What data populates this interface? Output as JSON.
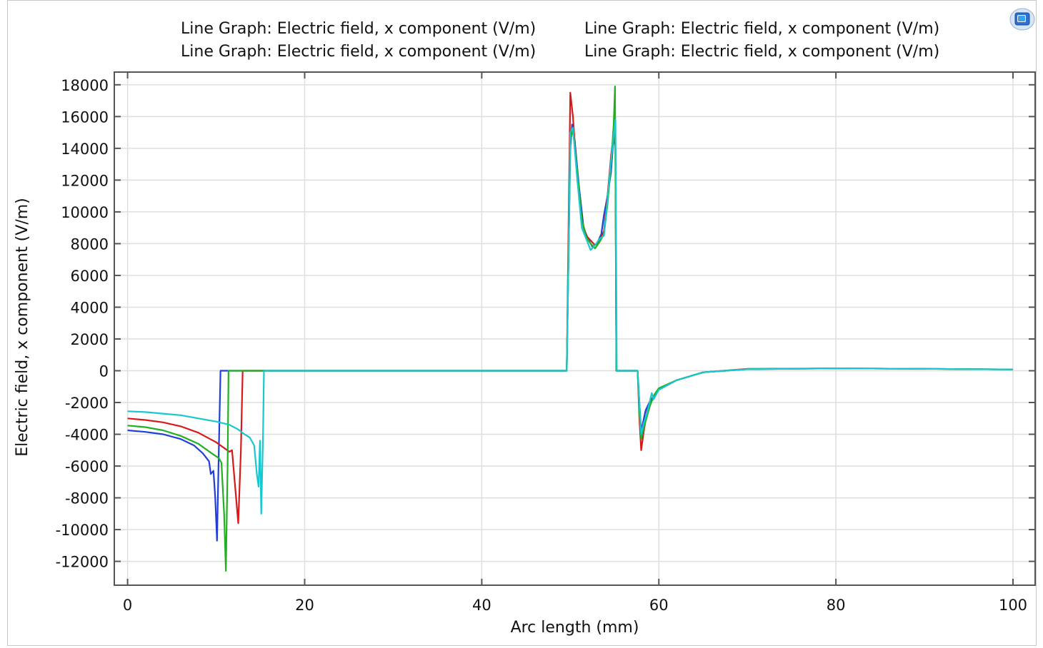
{
  "icon": "comsol-graphics-icon",
  "chart_data": {
    "type": "line",
    "title": "",
    "xlabel": "Arc length (mm)",
    "ylabel": "Electric field, x component (V/m)",
    "xlim": [
      -1.5,
      102.5
    ],
    "ylim": [
      -13500,
      18800
    ],
    "xticks": [
      0,
      20,
      40,
      60,
      80,
      100
    ],
    "yticks": [
      18000,
      16000,
      14000,
      12000,
      10000,
      8000,
      6000,
      4000,
      2000,
      0,
      -2000,
      -4000,
      -6000,
      -8000,
      -10000,
      -12000
    ],
    "grid": true,
    "legend_position": "top",
    "legend": [
      "Line Graph: Electric field, x component (V/m)",
      "Line Graph: Electric field, x component (V/m)",
      "Line Graph: Electric field, x component (V/m)",
      "Line Graph: Electric field, x component (V/m)"
    ],
    "series": [
      {
        "color": "#1f3fd6",
        "points": [
          [
            0,
            -3750
          ],
          [
            2,
            -3850
          ],
          [
            4,
            -4000
          ],
          [
            6,
            -4300
          ],
          [
            7.5,
            -4700
          ],
          [
            8.5,
            -5200
          ],
          [
            9.2,
            -5700
          ],
          [
            9.4,
            -6500
          ],
          [
            9.7,
            -6300
          ],
          [
            9.9,
            -8000
          ],
          [
            10.1,
            -10700
          ],
          [
            10.3,
            -5000
          ],
          [
            10.5,
            0
          ],
          [
            12,
            0
          ],
          [
            20,
            0
          ],
          [
            40,
            0
          ],
          [
            49.6,
            0
          ],
          [
            49.8,
            7000
          ],
          [
            50.0,
            14000
          ],
          [
            50.2,
            15500
          ],
          [
            50.5,
            14500
          ],
          [
            51,
            11500
          ],
          [
            51.5,
            9000
          ],
          [
            52,
            8300
          ],
          [
            52.5,
            7800
          ],
          [
            53,
            8000
          ],
          [
            53.5,
            8600
          ],
          [
            53.8,
            9800
          ],
          [
            54.2,
            11000
          ],
          [
            54.6,
            12500
          ],
          [
            54.9,
            14800
          ],
          [
            55.1,
            14000
          ],
          [
            55.2,
            0
          ],
          [
            57.6,
            0
          ],
          [
            57.8,
            -2000
          ],
          [
            58.0,
            -3800
          ],
          [
            58.2,
            -3300
          ],
          [
            58.5,
            -2500
          ],
          [
            59,
            -1900
          ],
          [
            60,
            -1200
          ],
          [
            62,
            -600
          ],
          [
            65,
            -100
          ],
          [
            70,
            100
          ],
          [
            80,
            150
          ],
          [
            90,
            120
          ],
          [
            100,
            80
          ]
        ]
      },
      {
        "color": "#d71919",
        "points": [
          [
            0,
            -3000
          ],
          [
            2,
            -3100
          ],
          [
            4,
            -3250
          ],
          [
            6,
            -3500
          ],
          [
            8,
            -3900
          ],
          [
            10,
            -4500
          ],
          [
            11.5,
            -5100
          ],
          [
            11.8,
            -5000
          ],
          [
            12.5,
            -9600
          ],
          [
            12.8,
            -5000
          ],
          [
            13.0,
            0
          ],
          [
            15,
            0
          ],
          [
            20,
            0
          ],
          [
            40,
            0
          ],
          [
            49.6,
            0
          ],
          [
            49.8,
            9000
          ],
          [
            50.0,
            17500
          ],
          [
            50.3,
            16000
          ],
          [
            50.8,
            12000
          ],
          [
            51.3,
            9500
          ],
          [
            51.8,
            8500
          ],
          [
            52.3,
            8200
          ],
          [
            52.8,
            7900
          ],
          [
            53.3,
            8200
          ],
          [
            53.8,
            8800
          ],
          [
            54.2,
            11000
          ],
          [
            54.6,
            13500
          ],
          [
            54.9,
            15000
          ],
          [
            55.1,
            14000
          ],
          [
            55.2,
            0
          ],
          [
            57.6,
            0
          ],
          [
            57.8,
            -3000
          ],
          [
            58.0,
            -5000
          ],
          [
            58.3,
            -3800
          ],
          [
            58.7,
            -2500
          ],
          [
            59.2,
            -1900
          ],
          [
            60,
            -1200
          ],
          [
            62,
            -600
          ],
          [
            65,
            -100
          ],
          [
            70,
            120
          ],
          [
            80,
            150
          ],
          [
            90,
            120
          ],
          [
            100,
            80
          ]
        ]
      },
      {
        "color": "#22b022",
        "points": [
          [
            0,
            -3450
          ],
          [
            2,
            -3550
          ],
          [
            4,
            -3750
          ],
          [
            6,
            -4100
          ],
          [
            8,
            -4600
          ],
          [
            9.5,
            -5200
          ],
          [
            10.3,
            -5500
          ],
          [
            10.6,
            -5800
          ],
          [
            10.9,
            -9000
          ],
          [
            11.1,
            -12600
          ],
          [
            11.3,
            -6000
          ],
          [
            11.4,
            0
          ],
          [
            13,
            0
          ],
          [
            20,
            0
          ],
          [
            40,
            0
          ],
          [
            49.6,
            0
          ],
          [
            49.8,
            7500
          ],
          [
            50.0,
            14500
          ],
          [
            50.3,
            15200
          ],
          [
            50.8,
            12500
          ],
          [
            51.3,
            9500
          ],
          [
            51.8,
            8400
          ],
          [
            52.3,
            8000
          ],
          [
            52.8,
            7700
          ],
          [
            53.3,
            8100
          ],
          [
            53.8,
            8600
          ],
          [
            54.2,
            10500
          ],
          [
            54.6,
            13000
          ],
          [
            54.9,
            15500
          ],
          [
            55.05,
            17900
          ],
          [
            55.2,
            0
          ],
          [
            57.6,
            0
          ],
          [
            57.8,
            -2500
          ],
          [
            58.0,
            -4300
          ],
          [
            58.3,
            -3600
          ],
          [
            58.7,
            -2800
          ],
          [
            59.0,
            -2200
          ],
          [
            59.5,
            -1500
          ],
          [
            60,
            -1100
          ],
          [
            62,
            -600
          ],
          [
            65,
            -100
          ],
          [
            70,
            100
          ],
          [
            80,
            150
          ],
          [
            90,
            120
          ],
          [
            100,
            80
          ]
        ]
      },
      {
        "color": "#18c8d0",
        "points": [
          [
            0,
            -2550
          ],
          [
            2,
            -2600
          ],
          [
            4,
            -2700
          ],
          [
            6,
            -2800
          ],
          [
            8,
            -3000
          ],
          [
            10,
            -3200
          ],
          [
            11.5,
            -3400
          ],
          [
            12.5,
            -3700
          ],
          [
            13.2,
            -4000
          ],
          [
            13.8,
            -4200
          ],
          [
            14.3,
            -4700
          ],
          [
            14.6,
            -6500
          ],
          [
            14.8,
            -7300
          ],
          [
            14.95,
            -4400
          ],
          [
            15.1,
            -9000
          ],
          [
            15.3,
            -4000
          ],
          [
            15.4,
            0
          ],
          [
            17,
            0
          ],
          [
            20,
            0
          ],
          [
            40,
            0
          ],
          [
            49.6,
            0
          ],
          [
            49.8,
            7000
          ],
          [
            50.0,
            15000
          ],
          [
            50.3,
            15300
          ],
          [
            50.8,
            12000
          ],
          [
            51.3,
            9000
          ],
          [
            51.8,
            8300
          ],
          [
            52.3,
            7600
          ],
          [
            52.8,
            7900
          ],
          [
            53.3,
            8300
          ],
          [
            53.8,
            8500
          ],
          [
            54.2,
            10800
          ],
          [
            54.6,
            13200
          ],
          [
            54.9,
            14800
          ],
          [
            55.1,
            15800
          ],
          [
            55.25,
            0
          ],
          [
            57.6,
            0
          ],
          [
            57.8,
            -2000
          ],
          [
            58.0,
            -4000
          ],
          [
            58.3,
            -3300
          ],
          [
            58.7,
            -2600
          ],
          [
            59.2,
            -1400
          ],
          [
            59.4,
            -1800
          ],
          [
            60,
            -1200
          ],
          [
            62,
            -600
          ],
          [
            65,
            -100
          ],
          [
            70,
            100
          ],
          [
            80,
            150
          ],
          [
            90,
            120
          ],
          [
            100,
            80
          ]
        ]
      }
    ]
  }
}
